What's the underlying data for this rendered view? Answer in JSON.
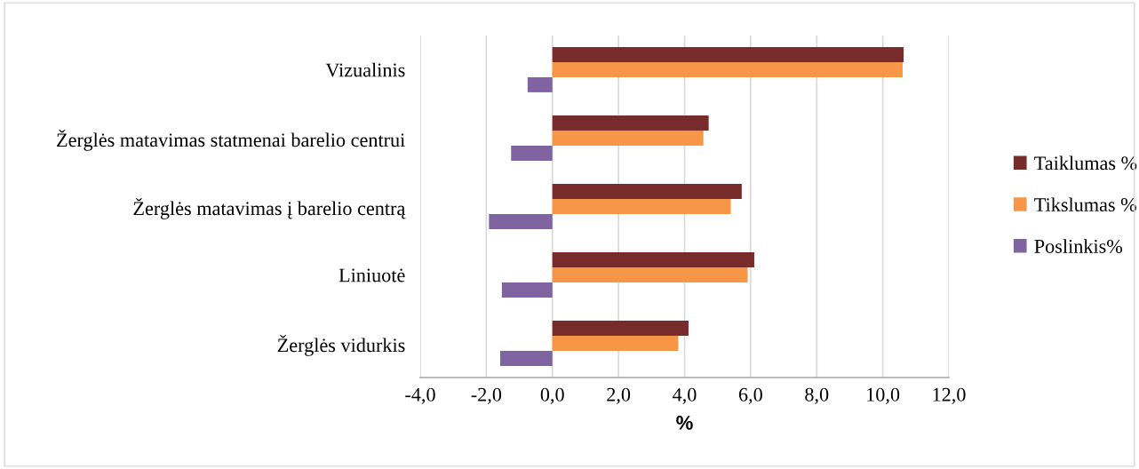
{
  "chart_data": {
    "type": "bar",
    "orientation": "horizontal",
    "xlabel": "%",
    "categories": [
      "Vizualinis",
      "Žerglės matavimas statmenai barelio centrui",
      "Žerglės matavimas į barelio centrą",
      "Liniuotė",
      "Žerglės vidurkis"
    ],
    "series": [
      {
        "name": "Taiklumas %",
        "color": "#772b2b",
        "values": [
          10.63,
          4.73,
          5.73,
          6.11,
          4.12
        ]
      },
      {
        "name": "Tikslumas %",
        "color": "#f79646",
        "values": [
          10.6,
          4.57,
          5.4,
          5.91,
          3.81
        ]
      },
      {
        "name": "Poslinkis%",
        "color": "#8064a2",
        "values": [
          -0.75,
          -1.25,
          -1.92,
          -1.53,
          -1.58
        ]
      }
    ],
    "xlim": [
      -4,
      12
    ],
    "xticks": [
      {
        "value": -4,
        "label": "-4,0"
      },
      {
        "value": -2,
        "label": "-2,0"
      },
      {
        "value": 0,
        "label": "0,0"
      },
      {
        "value": 2,
        "label": "2,0"
      },
      {
        "value": 4,
        "label": "4,0"
      },
      {
        "value": 6,
        "label": "6,0"
      },
      {
        "value": 8,
        "label": "8,0"
      },
      {
        "value": 10,
        "label": "10,0"
      },
      {
        "value": 12,
        "label": "12,0"
      }
    ],
    "grid": "x",
    "legend": "right"
  }
}
